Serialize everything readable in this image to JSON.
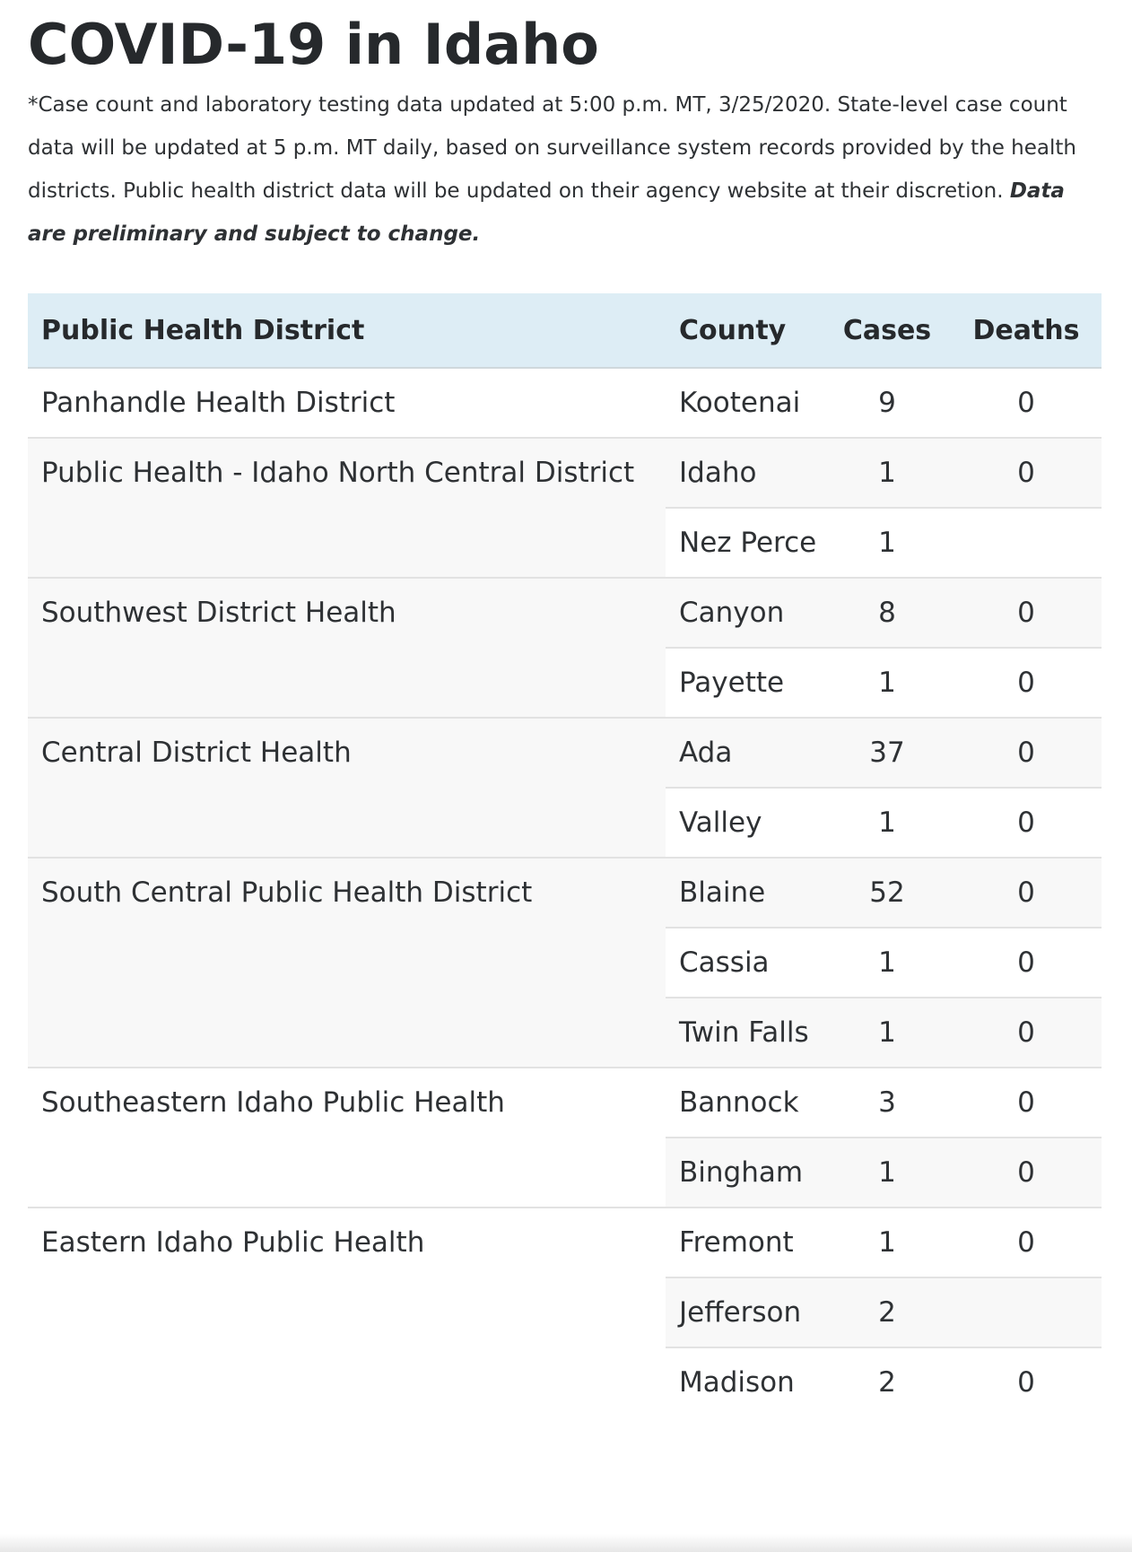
{
  "title": "COVID-19 in Idaho",
  "note": {
    "text": "*Case count and laboratory testing data updated at 5:00 p.m. MT, 3/25/2020. State-level case count data will be updated at 5 p.m. MT daily, based on surveillance system records provided by the health districts. Public health district data will be updated on their agency website at their discretion. ",
    "emphasis": "Data are preliminary and subject to change."
  },
  "table": {
    "headers": {
      "district": "Public Health District",
      "county": "County",
      "cases": "Cases",
      "deaths": "Deaths"
    },
    "rows": [
      {
        "district": "Panhandle Health District",
        "span": 1,
        "shaded_district": false,
        "county": "Kootenai",
        "cases": "9",
        "deaths": "0",
        "shade": "odd"
      },
      {
        "district": "Public Health - Idaho North Central District",
        "span": 2,
        "shaded_district": true,
        "county": "Idaho",
        "cases": "1",
        "deaths": "0",
        "shade": "even"
      },
      {
        "county": "Nez Perce",
        "cases": "1",
        "deaths": "",
        "shade": "odd"
      },
      {
        "district": "Southwest District Health",
        "span": 2,
        "shaded_district": true,
        "county": "Canyon",
        "cases": "8",
        "deaths": "0",
        "shade": "even"
      },
      {
        "county": "Payette",
        "cases": "1",
        "deaths": "0",
        "shade": "odd"
      },
      {
        "district": "Central District Health",
        "span": 2,
        "shaded_district": true,
        "county": "Ada",
        "cases": "37",
        "deaths": "0",
        "shade": "even"
      },
      {
        "county": "Valley",
        "cases": "1",
        "deaths": "0",
        "shade": "odd"
      },
      {
        "district": "South Central Public Health District",
        "span": 3,
        "shaded_district": true,
        "county": "Blaine",
        "cases": "52",
        "deaths": "0",
        "shade": "even"
      },
      {
        "county": "Cassia",
        "cases": "1",
        "deaths": "0",
        "shade": "odd"
      },
      {
        "county": "Twin Falls",
        "cases": "1",
        "deaths": "0",
        "shade": "even"
      },
      {
        "district": "Southeastern Idaho Public Health",
        "span": 2,
        "shaded_district": false,
        "county": "Bannock",
        "cases": "3",
        "deaths": "0",
        "shade": "odd"
      },
      {
        "county": "Bingham",
        "cases": "1",
        "deaths": "0",
        "shade": "even"
      },
      {
        "district": "Eastern Idaho Public Health",
        "span": 3,
        "shaded_district": false,
        "county": "Fremont",
        "cases": "1",
        "deaths": "0",
        "shade": "odd"
      },
      {
        "county": "Jefferson",
        "cases": "2",
        "deaths": "",
        "shade": "even"
      },
      {
        "county": "Madison",
        "cases": "2",
        "deaths": "0",
        "shade": "odd"
      }
    ]
  }
}
